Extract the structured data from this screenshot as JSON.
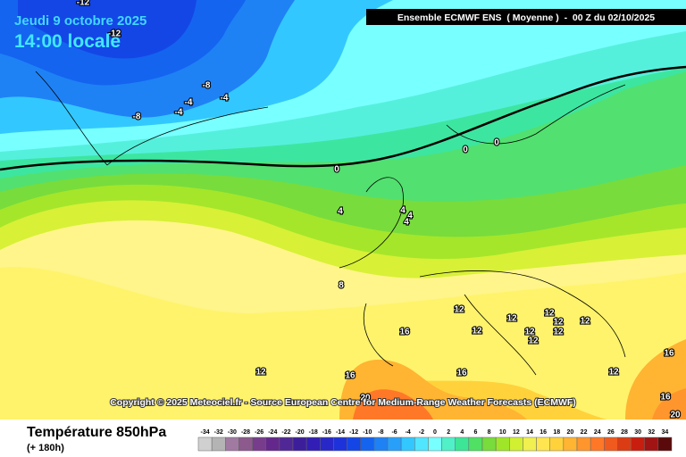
{
  "header": {
    "date": "Jeudi 9 octobre 2025",
    "time": "14:00 locale",
    "model": "Ensemble ECMWF ENS  ( Moyenne )  -  00 Z du 02/10/2025"
  },
  "copyright": "Copyright © 2025 Meteociel.fr - Source European Centre for Medium-Range Weather Forecasts (ECMWF)",
  "footer": {
    "title": "Température 850hPa",
    "lead": "(+ 180h)"
  },
  "scale": {
    "labels": [
      -34,
      -32,
      -30,
      -28,
      -26,
      -24,
      -22,
      -20,
      -18,
      -16,
      -14,
      -12,
      -10,
      -8,
      -6,
      -4,
      -2,
      0,
      2,
      4,
      6,
      8,
      10,
      12,
      14,
      16,
      18,
      20,
      22,
      24,
      26,
      28,
      30,
      32,
      34
    ],
    "colors": [
      "#d0d0d0",
      "#b4b4b4",
      "#a07aa0",
      "#8c5a8c",
      "#783c8c",
      "#64288c",
      "#502896",
      "#3c1e9b",
      "#321eb4",
      "#2828c8",
      "#1e32dc",
      "#1446e6",
      "#1464f0",
      "#1e82f5",
      "#28a0fa",
      "#32c8ff",
      "#50e6ff",
      "#78ffff",
      "#50f0c8",
      "#3ce696",
      "#50e164",
      "#78dc3c",
      "#a0e628",
      "#d2f032",
      "#f0f050",
      "#ffe650",
      "#ffd23c",
      "#ffb432",
      "#ff962d",
      "#ff7828",
      "#f05a1e",
      "#dc3c14",
      "#c81e0f",
      "#a01414",
      "#5a0a0a"
    ]
  },
  "contour_labels": [
    -12,
    -12,
    -8,
    -4,
    -4,
    -4,
    -8,
    0,
    0,
    0,
    4,
    4,
    4,
    4,
    8,
    12,
    12,
    12,
    12,
    12,
    12,
    12,
    12,
    12,
    12,
    12,
    16,
    16,
    16,
    16,
    16,
    20,
    20
  ]
}
